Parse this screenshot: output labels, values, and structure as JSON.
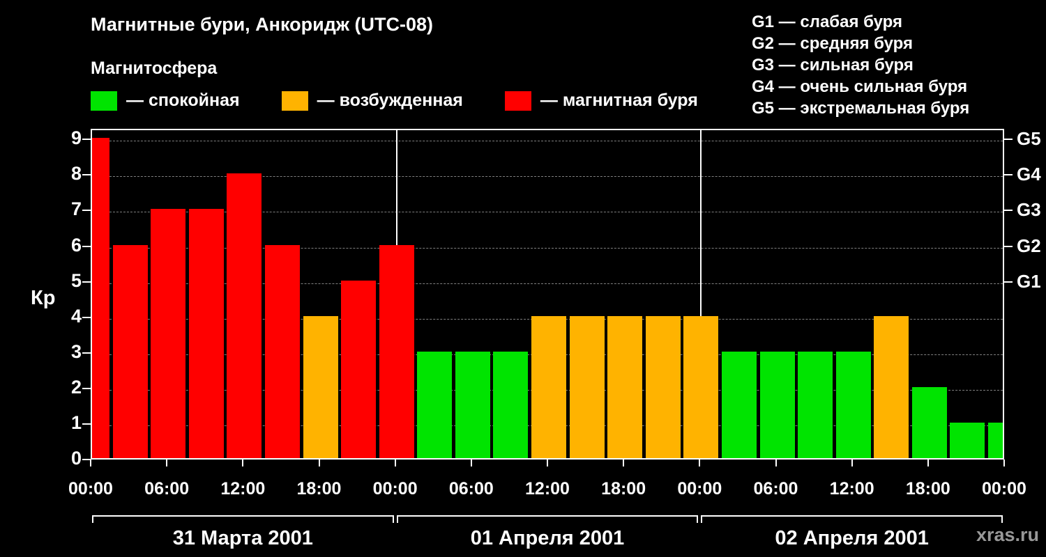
{
  "title": "Магнитные бури, Анкоридж (UTC-08)",
  "watermark": "xras.ru",
  "chart_data": {
    "type": "bar",
    "title": "Магнитные бури, Анкоридж (UTC-08)",
    "subtitle": "Магнитосфера",
    "ylabel": "Кр",
    "xlabel": "",
    "ylim": [
      0,
      9.3
    ],
    "grid": "horizontal dashed",
    "legend_position": "top",
    "legend": {
      "title": "Магнитосфера",
      "items": [
        {
          "label": "— спокойная",
          "color": "#00e400"
        },
        {
          "label": "— возбужденная",
          "color": "#ffb300"
        },
        {
          "label": "— магнитная буря",
          "color": "#ff0000"
        }
      ]
    },
    "g_scale_legend": [
      "G1 — слабая буря",
      "G2 — средняя буря",
      "G3 — сильная буря",
      "G4 — очень сильная буря",
      "G5 — экстремальная буря"
    ],
    "bar_interval_hours": 3,
    "x_hours": [
      0,
      3,
      6,
      9,
      12,
      15,
      18,
      21,
      24,
      27,
      30,
      33,
      36,
      39,
      42,
      45,
      48,
      51,
      54,
      57,
      60,
      63,
      66,
      69,
      72
    ],
    "values": [
      9,
      6,
      7,
      7,
      8,
      6,
      4,
      5,
      6,
      3,
      3,
      3,
      4,
      4,
      4,
      4,
      4,
      3,
      3,
      3,
      3,
      4,
      2,
      1,
      1
    ],
    "y_ticks": [
      0,
      1,
      2,
      3,
      4,
      5,
      6,
      7,
      8,
      9
    ],
    "x_tick_labels": [
      "00:00",
      "06:00",
      "12:00",
      "18:00",
      "00:00",
      "06:00",
      "12:00",
      "18:00",
      "00:00",
      "06:00",
      "12:00",
      "18:00",
      "00:00"
    ],
    "right_axis": [
      {
        "label": "G1",
        "kp": 5
      },
      {
        "label": "G2",
        "kp": 6
      },
      {
        "label": "G3",
        "kp": 7
      },
      {
        "label": "G4",
        "kp": 8
      },
      {
        "label": "G5",
        "kp": 9
      }
    ],
    "day_boundaries_hours": [
      24,
      48
    ],
    "day_labels": [
      "31 Марта 2001",
      "01 Апреля 2001",
      "02 Апреля 2001"
    ],
    "colors": {
      "quiet": "#00e400",
      "unsettled": "#ffb300",
      "storm": "#ff0000"
    },
    "thresholds": {
      "unsettled_min": 4,
      "storm_min": 5
    }
  }
}
